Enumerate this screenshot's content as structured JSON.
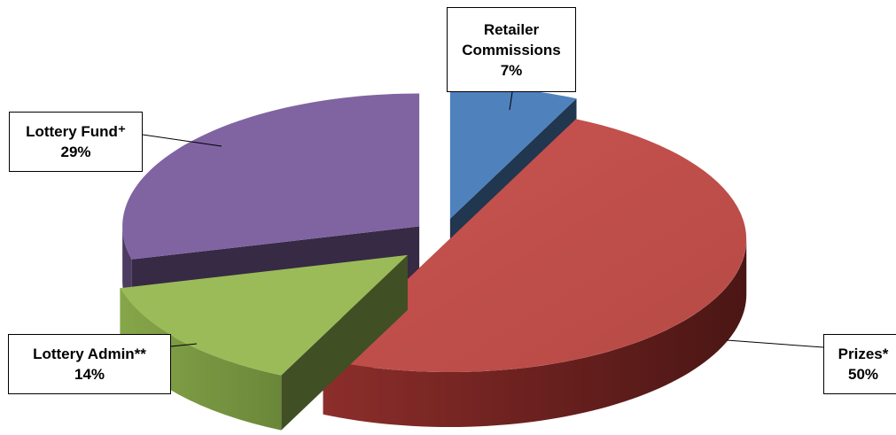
{
  "chart_data": {
    "type": "pie",
    "style": "3d-exploded",
    "slices": [
      {
        "label": "Retailer Commissions",
        "value": 7,
        "value_label": "7%",
        "color": "#4F81BD"
      },
      {
        "label": "Prizes*",
        "value": 50,
        "value_label": "50%",
        "color": "#C0504D"
      },
      {
        "label": "Lottery Admin**",
        "value": 14,
        "value_label": "14%",
        "color": "#9BBB59"
      },
      {
        "label": "Lottery Fund⁺",
        "value": 29,
        "value_label": "29%",
        "color": "#8064A2"
      }
    ],
    "legend": "none",
    "data_labels": "callout boxes with leader lines"
  },
  "labels": {
    "retailer": {
      "line1": "Retailer",
      "line2": "Commissions",
      "pct": "7%"
    },
    "fund": {
      "name": "Lottery Fund⁺",
      "pct": "29%"
    },
    "admin": {
      "name": "Lottery Admin**",
      "pct": "14%"
    },
    "prizes": {
      "name": "Prizes*",
      "pct": "50%"
    }
  }
}
